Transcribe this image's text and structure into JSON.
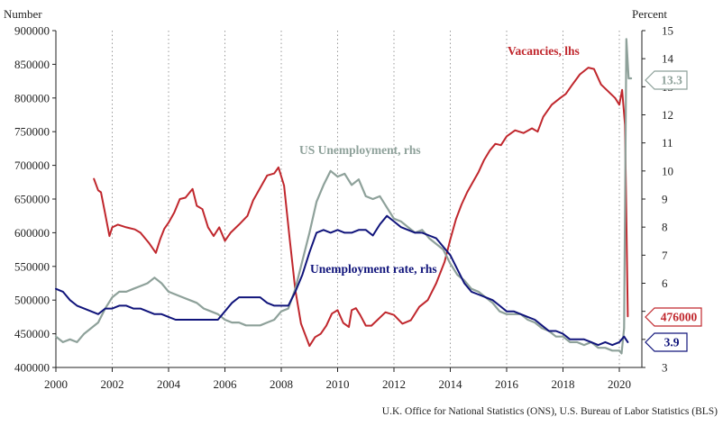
{
  "chart_data": {
    "type": "line",
    "left_axis": {
      "title": "Number",
      "min": 400000,
      "max": 900000,
      "ticks": [
        400000,
        450000,
        500000,
        550000,
        600000,
        650000,
        700000,
        750000,
        800000,
        850000,
        900000
      ],
      "tick_labels": [
        "400000",
        "450000",
        "500000",
        "550000",
        "600000",
        "650000",
        "700000",
        "750000",
        "800000",
        "850000",
        "900000"
      ]
    },
    "right_axis": {
      "title": "Percent",
      "min": 3,
      "max": 15,
      "ticks": [
        3,
        4,
        5,
        6,
        7,
        8,
        9,
        10,
        11,
        12,
        13,
        14,
        15
      ],
      "tick_labels": [
        "3",
        "4",
        "5",
        "6",
        "7",
        "8",
        "9",
        "10",
        "11",
        "12",
        "13",
        "14",
        "15"
      ]
    },
    "x_axis": {
      "min": 2000,
      "max": 2020.8,
      "ticks": [
        2000,
        2002,
        2004,
        2006,
        2008,
        2010,
        2012,
        2014,
        2016,
        2018,
        2020
      ],
      "tick_labels": [
        "2000",
        "2002",
        "2004",
        "2006",
        "2008",
        "2010",
        "2012",
        "2014",
        "2016",
        "2018",
        "2020"
      ]
    },
    "grid": "vertical dotted",
    "series": [
      {
        "name": "Vacancies, lhs",
        "axis": "left",
        "color": "#c0272d",
        "end_label": "476000",
        "x": [
          2001.35,
          2001.5,
          2001.6,
          2001.75,
          2001.9,
          2002.0,
          2002.2,
          2002.5,
          2002.8,
          2003.0,
          2003.3,
          2003.55,
          2003.7,
          2003.85,
          2004.0,
          2004.2,
          2004.4,
          2004.6,
          2004.85,
          2005.0,
          2005.2,
          2005.4,
          2005.6,
          2005.8,
          2006.0,
          2006.2,
          2006.5,
          2006.8,
          2007.0,
          2007.3,
          2007.5,
          2007.75,
          2007.9,
          2008.1,
          2008.3,
          2008.5,
          2008.7,
          2009.0,
          2009.2,
          2009.4,
          2009.6,
          2009.8,
          2010.0,
          2010.2,
          2010.4,
          2010.5,
          2010.65,
          2010.8,
          2011.0,
          2011.2,
          2011.4,
          2011.7,
          2012.0,
          2012.3,
          2012.6,
          2012.9,
          2013.2,
          2013.5,
          2013.8,
          2014.0,
          2014.2,
          2014.4,
          2014.6,
          2014.8,
          2015.0,
          2015.2,
          2015.4,
          2015.6,
          2015.8,
          2016.0,
          2016.3,
          2016.6,
          2016.9,
          2017.1,
          2017.3,
          2017.6,
          2017.9,
          2018.1,
          2018.3,
          2018.6,
          2018.9,
          2019.1,
          2019.35,
          2019.6,
          2019.85,
          2020.0,
          2020.1,
          2020.2,
          2020.3
        ],
        "y": [
          680000,
          663000,
          660000,
          628000,
          595000,
          608000,
          612000,
          608000,
          605000,
          600000,
          585000,
          570000,
          590000,
          606000,
          615000,
          630000,
          650000,
          652000,
          665000,
          640000,
          635000,
          608000,
          595000,
          608000,
          588000,
          600000,
          612000,
          625000,
          648000,
          670000,
          685000,
          688000,
          697000,
          670000,
          590000,
          515000,
          465000,
          432000,
          445000,
          450000,
          462000,
          480000,
          485000,
          466000,
          460000,
          485000,
          488000,
          478000,
          462000,
          462000,
          470000,
          482000,
          478000,
          465000,
          470000,
          490000,
          500000,
          525000,
          557000,
          590000,
          620000,
          642000,
          660000,
          675000,
          690000,
          708000,
          722000,
          732000,
          730000,
          743000,
          752000,
          748000,
          755000,
          750000,
          772000,
          790000,
          800000,
          806000,
          818000,
          835000,
          845000,
          843000,
          820000,
          810000,
          800000,
          790000,
          812000,
          760000,
          476000
        ]
      },
      {
        "name": "US Unemployment, rhs",
        "axis": "right",
        "color": "#8ea19a",
        "end_label": "13.3",
        "x": [
          2000.0,
          2000.25,
          2000.5,
          2000.75,
          2001.0,
          2001.25,
          2001.5,
          2001.75,
          2002.0,
          2002.25,
          2002.5,
          2002.75,
          2003.0,
          2003.25,
          2003.5,
          2003.75,
          2004.0,
          2004.25,
          2004.5,
          2004.75,
          2005.0,
          2005.25,
          2005.5,
          2005.75,
          2006.0,
          2006.25,
          2006.5,
          2006.75,
          2007.0,
          2007.25,
          2007.5,
          2007.75,
          2008.0,
          2008.25,
          2008.5,
          2008.75,
          2009.0,
          2009.25,
          2009.5,
          2009.75,
          2010.0,
          2010.25,
          2010.5,
          2010.75,
          2011.0,
          2011.25,
          2011.5,
          2011.75,
          2012.0,
          2012.25,
          2012.5,
          2012.75,
          2013.0,
          2013.25,
          2013.5,
          2013.75,
          2014.0,
          2014.25,
          2014.5,
          2014.75,
          2015.0,
          2015.25,
          2015.5,
          2015.75,
          2016.0,
          2016.25,
          2016.5,
          2016.75,
          2017.0,
          2017.25,
          2017.5,
          2017.75,
          2018.0,
          2018.25,
          2018.5,
          2018.75,
          2019.0,
          2019.25,
          2019.5,
          2019.75,
          2020.0,
          2020.08,
          2020.17,
          2020.25,
          2020.33,
          2020.42
        ],
        "y": [
          4.1,
          3.9,
          4.0,
          3.9,
          4.2,
          4.4,
          4.6,
          5.1,
          5.5,
          5.7,
          5.7,
          5.8,
          5.9,
          6.0,
          6.2,
          6.0,
          5.7,
          5.6,
          5.5,
          5.4,
          5.3,
          5.1,
          5.0,
          4.9,
          4.7,
          4.6,
          4.6,
          4.5,
          4.5,
          4.5,
          4.6,
          4.7,
          5.0,
          5.1,
          5.8,
          6.8,
          7.8,
          8.9,
          9.5,
          10.0,
          9.8,
          9.9,
          9.5,
          9.7,
          9.1,
          9.0,
          9.1,
          8.7,
          8.3,
          8.2,
          8.0,
          7.8,
          7.9,
          7.6,
          7.4,
          7.2,
          6.7,
          6.3,
          6.1,
          5.8,
          5.7,
          5.5,
          5.3,
          5.0,
          4.9,
          4.9,
          4.9,
          4.7,
          4.6,
          4.4,
          4.3,
          4.1,
          4.1,
          3.9,
          3.9,
          3.8,
          3.9,
          3.7,
          3.7,
          3.6,
          3.6,
          3.5,
          4.4,
          14.7,
          13.3,
          13.3
        ]
      },
      {
        "name": "Unemployment rate, rhs",
        "axis": "right",
        "color": "#10147b",
        "end_label": "3.9",
        "x": [
          2000.0,
          2000.25,
          2000.5,
          2000.75,
          2001.0,
          2001.25,
          2001.5,
          2001.75,
          2002.0,
          2002.25,
          2002.5,
          2002.75,
          2003.0,
          2003.25,
          2003.5,
          2003.75,
          2004.0,
          2004.25,
          2004.5,
          2004.75,
          2005.0,
          2005.25,
          2005.5,
          2005.75,
          2006.0,
          2006.25,
          2006.5,
          2006.75,
          2007.0,
          2007.25,
          2007.5,
          2007.75,
          2008.0,
          2008.25,
          2008.5,
          2008.75,
          2009.0,
          2009.25,
          2009.5,
          2009.75,
          2010.0,
          2010.25,
          2010.5,
          2010.75,
          2011.0,
          2011.25,
          2011.5,
          2011.75,
          2012.0,
          2012.25,
          2012.5,
          2012.75,
          2013.0,
          2013.25,
          2013.5,
          2013.75,
          2014.0,
          2014.25,
          2014.5,
          2014.75,
          2015.0,
          2015.25,
          2015.5,
          2015.75,
          2016.0,
          2016.25,
          2016.5,
          2016.75,
          2017.0,
          2017.25,
          2017.5,
          2017.75,
          2018.0,
          2018.25,
          2018.5,
          2018.75,
          2019.0,
          2019.25,
          2019.5,
          2019.75,
          2020.0,
          2020.17,
          2020.3
        ],
        "y": [
          5.8,
          5.7,
          5.4,
          5.2,
          5.1,
          5.0,
          4.9,
          5.1,
          5.1,
          5.2,
          5.2,
          5.1,
          5.1,
          5.0,
          4.9,
          4.9,
          4.8,
          4.7,
          4.7,
          4.7,
          4.7,
          4.7,
          4.7,
          4.7,
          5.0,
          5.3,
          5.5,
          5.5,
          5.5,
          5.5,
          5.3,
          5.2,
          5.2,
          5.2,
          5.7,
          6.3,
          7.1,
          7.8,
          7.9,
          7.8,
          7.9,
          7.8,
          7.8,
          7.9,
          7.9,
          7.7,
          8.1,
          8.4,
          8.2,
          8.0,
          7.9,
          7.8,
          7.8,
          7.7,
          7.6,
          7.3,
          7.0,
          6.5,
          6.0,
          5.7,
          5.6,
          5.5,
          5.4,
          5.2,
          5.0,
          5.0,
          4.9,
          4.8,
          4.7,
          4.5,
          4.3,
          4.3,
          4.2,
          4.0,
          4.0,
          4.0,
          3.9,
          3.8,
          3.9,
          3.8,
          3.9,
          4.1,
          3.9
        ]
      }
    ],
    "source": "U.K. Office for National Statistics (ONS), U.S. Bureau of Labor Statistics (BLS)"
  }
}
